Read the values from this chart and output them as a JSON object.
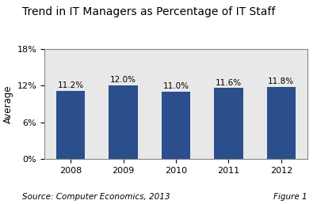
{
  "title": "Trend in IT Managers as Percentage of IT Staff",
  "categories": [
    "2008",
    "2009",
    "2010",
    "2011",
    "2012"
  ],
  "values": [
    11.2,
    12.0,
    11.0,
    11.6,
    11.8
  ],
  "labels": [
    "11.2%",
    "12.0%",
    "11.0%",
    "11.6%",
    "11.8%"
  ],
  "bar_color": "#2B4E8C",
  "ylabel": "Average",
  "ylim": [
    0,
    18
  ],
  "yticks": [
    0,
    6,
    12,
    18
  ],
  "ytick_labels": [
    "0%",
    "6%",
    "12%",
    "18%"
  ],
  "plot_bg_color": "#E8E8E8",
  "outer_bg_color": "#FFFFFF",
  "source_text": "Source: Computer Economics, 2013",
  "figure_text": "Figure 1",
  "title_fontsize": 10,
  "axis_label_fontsize": 8.5,
  "tick_fontsize": 8,
  "bar_label_fontsize": 7.5,
  "footer_fontsize": 7.5,
  "bar_width": 0.55
}
